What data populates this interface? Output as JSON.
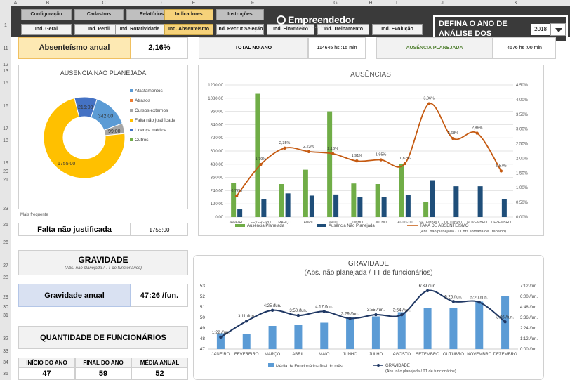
{
  "columns": [
    "A",
    "B",
    "C",
    "D",
    "E",
    "F",
    "G",
    "H",
    "I",
    "J",
    "K"
  ],
  "rows": [
    "1",
    "11",
    "12",
    "13",
    "15",
    "16",
    "17",
    "18",
    "19",
    "20",
    "21",
    "23",
    "25",
    "26",
    "27",
    "28",
    "29",
    "30",
    "31",
    "32",
    "33",
    "34",
    "35"
  ],
  "nav": {
    "top": [
      "Configuração",
      "Cadastros",
      "Relatórios",
      "Indicadores",
      "Instruções"
    ],
    "sub": [
      "Ind. Geral",
      "Ind. Perfil",
      "Ind. Rotatividade",
      "Ind. Absenteísmo",
      "Ind. Recrut Seleção",
      "Ind. Financeiro",
      "Ind. Treinamento",
      "Ind. Evolução"
    ],
    "active_top": "Indicadores",
    "active_sub": "Ind. Absenteísmo"
  },
  "logo": {
    "title": "Empreendedor",
    "subtitle": "CURIOSO.COM"
  },
  "year_selector": {
    "label": "DEFINA O ANO DE ANÁLISE DOS RELATÓRIOS",
    "value": "2018"
  },
  "kpis": {
    "absenteismo_label": "Absenteísmo anual",
    "absenteismo_value": "2,16%",
    "total_label": "TOTAL NO ANO",
    "total_value": "114645 hs :15 min",
    "planejada_label": "AUSÊNCIA PLANEJADA",
    "planejada_value": "4676 hs :00 min",
    "mais_frequente_label": "Mais frequente",
    "falta_label": "Falta não justificada",
    "falta_value": "1755:00",
    "gravidade_title": "GRAVIDADE",
    "gravidade_sub": "(Abs. não planejada / TT de funcionários)",
    "gravidade_anual_label": "Gravidade anual",
    "gravidade_anual_value": "47:26 /fun.",
    "qtd_title": "QUANTIDADE DE FUNCIONÁRIOS",
    "inicio_label": "INÍCIO DO ANO",
    "inicio_value": "47",
    "final_label": "FINAL DO ANO",
    "final_value": "59",
    "media_label": "MÉDIA ANUAL",
    "media_value": "52"
  },
  "colors": {
    "green": "#70ad47",
    "navy": "#1f4e79",
    "orange": "#c55a11",
    "blue": "#5b9bd5",
    "darkblue": "#203864",
    "yellow": "#ffc000",
    "gray": "#a5a5a5",
    "kpi_yellow": "#fde9b3",
    "kpi_blue": "#d9e1f2"
  },
  "chart_data": [
    {
      "type": "pie",
      "title": "AUSÊNCIA NÃO PLANEJADA",
      "categories": [
        "Afastamentos",
        "Atrasos",
        "Cursos externos",
        "Falta não justificada",
        "Licença médica",
        "Outros"
      ],
      "values": [
        342.0,
        null,
        99.0,
        1755.0,
        216.0,
        null
      ],
      "data_labels": [
        "342:00",
        "",
        "99:00",
        "1755:00",
        "216:00",
        ""
      ],
      "colors": [
        "#5b9bd5",
        "#ed7d31",
        "#a5a5a5",
        "#ffc000",
        "#4472c4",
        "#70ad47"
      ]
    },
    {
      "type": "bar",
      "title": "AUSÊNCIAS",
      "categories": [
        "JANEIRO",
        "FEVEREIRO",
        "MARÇO",
        "ABRIL",
        "MAIO",
        "JUNHO",
        "JULHO",
        "AGOSTO",
        "SETEMBRO",
        "OUTUBRO",
        "NOVEMBRO",
        "DEZEMBRO"
      ],
      "y_ticks": [
        "0:00",
        "120:00",
        "240:00",
        "360:00",
        "480:00",
        "600:00",
        "720:00",
        "840:00",
        "960:00",
        "1080:00",
        "1200:00"
      ],
      "y2_ticks": [
        "0,00%",
        "0,50%",
        "1,00%",
        "1,50%",
        "2,00%",
        "2,50%",
        "3,00%",
        "3,50%",
        "4,00%",
        "4,50%"
      ],
      "ylim": [
        0,
        1200
      ],
      "y2lim": [
        0,
        4.5
      ],
      "series": [
        {
          "name": "Ausência Planejada",
          "values": [
            310,
            1120,
            300,
            430,
            960,
            305,
            300,
            480,
            140,
            0,
            0,
            0
          ],
          "color": "#70ad47"
        },
        {
          "name": "Ausência Não Planejada",
          "values": [
            70,
            160,
            215,
            195,
            205,
            180,
            185,
            200,
            335,
            280,
            280,
            160
          ],
          "color": "#1f4e79"
        },
        {
          "name": "TAXA DE ABSENTEÍSMO",
          "legend_sub": "(Abs. não planejada / TT hrs Jornada de Trabalho)",
          "values": [
            0.72,
            1.79,
            2.35,
            2.23,
            2.16,
            1.91,
            1.95,
            1.82,
            3.86,
            2.68,
            2.86,
            1.57
          ],
          "labels": [
            "0,72%",
            "1,79%",
            "2,35%",
            "2,23%",
            "2,16%",
            "1,91%",
            "1,95%",
            "1,82%",
            "3,86%",
            "2,68%",
            "2,86%",
            "1,57%"
          ],
          "color": "#c55a11",
          "axis": "right"
        }
      ]
    },
    {
      "type": "bar",
      "title": "GRAVIDADE",
      "subtitle": "(Abs. não planejada / TT de funcionários)",
      "categories": [
        "JANEIRO",
        "FEVEREIRO",
        "MARÇO",
        "ABRIL",
        "MAIO",
        "JUNHO",
        "JULHO",
        "AGOSTO",
        "SETEMBRO",
        "OUTUBRO",
        "NOVEMBRO",
        "DEZEMBRO"
      ],
      "y_ticks": [
        "47",
        "48",
        "49",
        "50",
        "51",
        "52",
        "53"
      ],
      "y2_ticks": [
        "0:00 /fun.",
        "1:12 /fun.",
        "2:24 /fun.",
        "3:36 /fun.",
        "4:48 /fun.",
        "6:00 /fun.",
        "7:12 /fun."
      ],
      "ylim": [
        47,
        53
      ],
      "y2lim": [
        0,
        432
      ],
      "series": [
        {
          "name": "Média de Funcionários final do mês",
          "values": [
            48.5,
            48.4,
            49.2,
            49.3,
            49.5,
            50,
            50.1,
            50.5,
            50.9,
            50.9,
            51.5,
            52
          ],
          "color": "#5b9bd5"
        },
        {
          "name": "GRAVIDADE",
          "legend_sub": "(Abs. não planejada / TT de funcionários)",
          "values": [
            82,
            191,
            265,
            230,
            257,
            209,
            235,
            234,
            399,
            325,
            320,
            186
          ],
          "labels": [
            "1:22 /fun.",
            "3:11 /fun.",
            "4:25 /fun.",
            "3:50 /fun.",
            "4:17 /fun.",
            "3:29 /fun.",
            "3:55 /fun.",
            "3:54 /fun.",
            "6:39 /fun.",
            "5:25 /fun.",
            "5:20 /fun.",
            "3:06 /fun."
          ],
          "color": "#203864",
          "axis": "right"
        }
      ]
    }
  ]
}
